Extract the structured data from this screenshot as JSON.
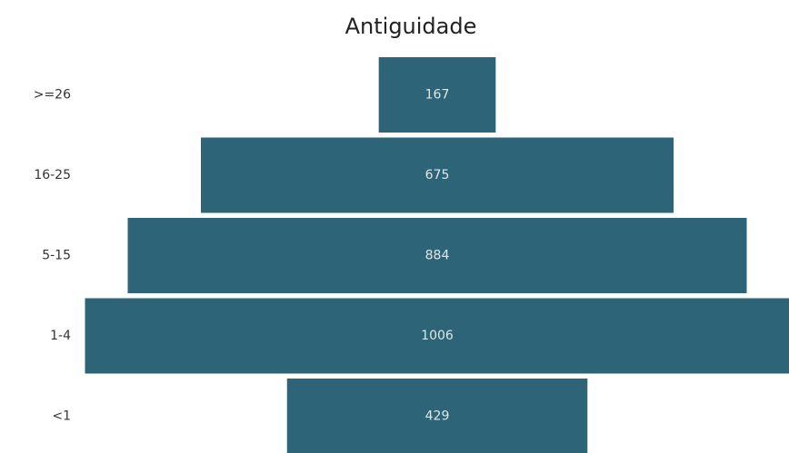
{
  "chart_data": {
    "type": "funnel",
    "title": "Antiguidade",
    "categories": [
      ">=26",
      "16-25",
      "5-15",
      "1-4",
      "<1"
    ],
    "values": [
      167,
      675,
      884,
      1006,
      429
    ],
    "color": "#2e6477"
  }
}
